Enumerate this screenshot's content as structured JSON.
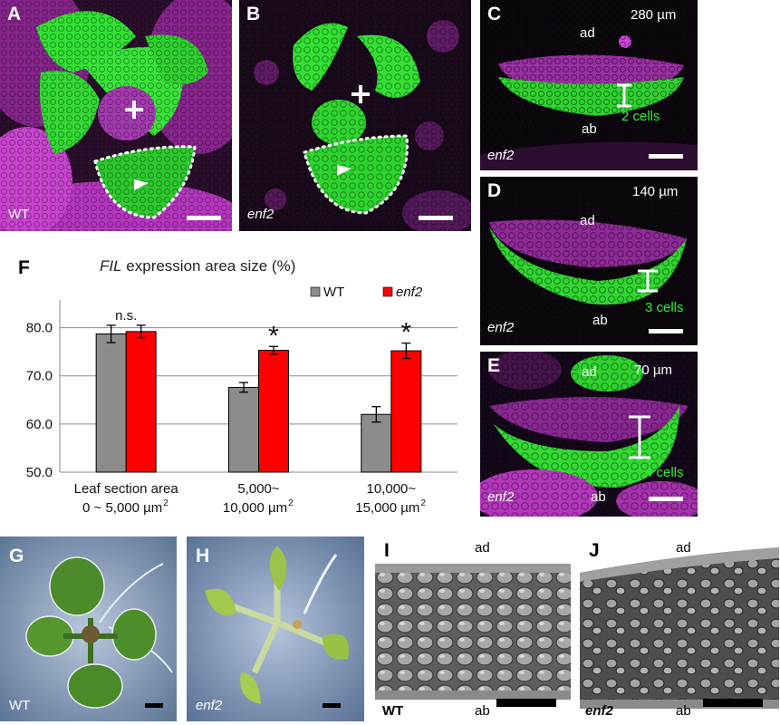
{
  "panels": {
    "A": {
      "label": "A",
      "genotype": "WT"
    },
    "B": {
      "label": "B",
      "genotype": "enf2"
    },
    "C": {
      "label": "C",
      "depth": "280 µm",
      "ad": "ad",
      "ab": "ab",
      "cells": "2 cells",
      "genotype": "enf2"
    },
    "D": {
      "label": "D",
      "depth": "140 µm",
      "ad": "ad",
      "ab": "ab",
      "cells": "3 cells",
      "genotype": "enf2"
    },
    "E": {
      "label": "E",
      "depth": "70 µm",
      "ad": "ad",
      "ab": "ab",
      "cells": "4 cells",
      "genotype": "enf2"
    },
    "G": {
      "label": "G",
      "genotype": "WT"
    },
    "H": {
      "label": "H",
      "genotype": "enf2"
    },
    "I": {
      "label": "I",
      "ad": "ad",
      "ab": "ab",
      "genotype": "WT"
    },
    "J": {
      "label": "J",
      "ad": "ad",
      "ab": "ab",
      "genotype": "enf2"
    }
  },
  "figure_f": {
    "label": "F",
    "title_italic": "FIL",
    "title_rest": " expression area size (%)"
  },
  "chart_data": {
    "type": "bar",
    "categories": [
      "Leaf section area 0 ~ 5,000 µm2",
      "5,000~ 10,000 µm2",
      "10,000~ 15,000 µm2"
    ],
    "category_lines": [
      [
        "Leaf section area",
        "0 ~ 5,000 µm",
        "2"
      ],
      [
        "5,000~",
        "10,000 µm",
        "2"
      ],
      [
        "10,000~",
        "15,000 µm",
        "2"
      ]
    ],
    "series": [
      {
        "name": "WT",
        "values": [
          78.7,
          67.6,
          62.0
        ],
        "errors": [
          1.8,
          1.0,
          1.6
        ],
        "color": "#8c8c8c"
      },
      {
        "name": "enf2",
        "values": [
          79.2,
          75.3,
          75.2
        ],
        "errors": [
          1.3,
          0.8,
          1.6
        ],
        "color": "#ff0000"
      }
    ],
    "significance": [
      "n.s.",
      "*",
      "*"
    ],
    "ylim": [
      50,
      85
    ],
    "yticks": [
      50.0,
      60.0,
      70.0,
      80.0
    ],
    "ytick_labels": [
      "50.0",
      "60.0",
      "70.0",
      "80.0"
    ],
    "grid": true,
    "legend": "top-right"
  }
}
